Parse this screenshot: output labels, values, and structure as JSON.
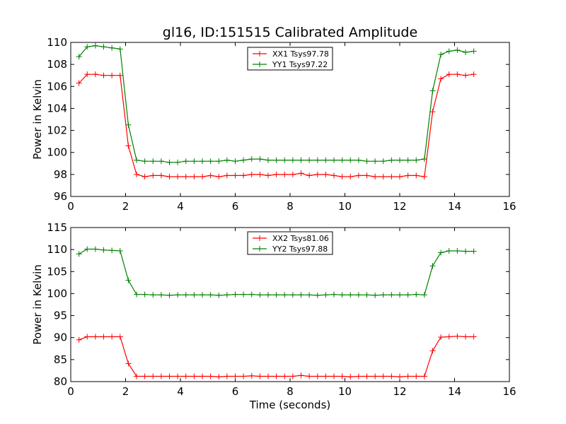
{
  "chart_data": [
    {
      "type": "line",
      "title": "gl16, ID:151515 Calibrated Amplitude",
      "xlabel": "",
      "ylabel": "Power in Kelvin",
      "xlim": [
        0,
        16
      ],
      "ylim": [
        96,
        110
      ],
      "xticks": [
        0,
        2,
        4,
        6,
        8,
        10,
        12,
        14,
        16
      ],
      "yticks": [
        96,
        98,
        100,
        102,
        104,
        106,
        108,
        110
      ],
      "legend": "top-center",
      "x": [
        0.3,
        0.6,
        0.9,
        1.2,
        1.5,
        1.8,
        2.1,
        2.4,
        2.7,
        3.0,
        3.3,
        3.6,
        3.9,
        4.2,
        4.5,
        4.8,
        5.1,
        5.4,
        5.7,
        6.0,
        6.3,
        6.6,
        6.9,
        7.2,
        7.5,
        7.8,
        8.1,
        8.4,
        8.7,
        9.0,
        9.3,
        9.6,
        9.9,
        10.2,
        10.5,
        10.8,
        11.1,
        11.4,
        11.7,
        12.0,
        12.3,
        12.6,
        12.9,
        13.2,
        13.5,
        13.8,
        14.1,
        14.4,
        14.7
      ],
      "series": [
        {
          "name": "XX1 Tsys97.78",
          "color": "#ff0000",
          "values": [
            106.3,
            107.1,
            107.1,
            107.0,
            107.0,
            107.0,
            100.6,
            98.0,
            97.8,
            97.9,
            97.9,
            97.8,
            97.8,
            97.8,
            97.8,
            97.8,
            97.9,
            97.8,
            97.9,
            97.9,
            97.9,
            98.0,
            98.0,
            97.9,
            98.0,
            98.0,
            98.0,
            98.1,
            97.9,
            98.0,
            98.0,
            97.9,
            97.8,
            97.8,
            97.9,
            97.9,
            97.8,
            97.8,
            97.8,
            97.8,
            97.9,
            97.9,
            97.8,
            103.7,
            106.7,
            107.1,
            107.1,
            107.0,
            107.1
          ]
        },
        {
          "name": "YY1 Tsys97.22",
          "color": "#008000",
          "values": [
            108.7,
            109.6,
            109.7,
            109.6,
            109.5,
            109.4,
            102.5,
            99.3,
            99.2,
            99.2,
            99.2,
            99.1,
            99.1,
            99.2,
            99.2,
            99.2,
            99.2,
            99.2,
            99.3,
            99.2,
            99.3,
            99.4,
            99.4,
            99.3,
            99.3,
            99.3,
            99.3,
            99.3,
            99.3,
            99.3,
            99.3,
            99.3,
            99.3,
            99.3,
            99.3,
            99.2,
            99.2,
            99.2,
            99.3,
            99.3,
            99.3,
            99.3,
            99.4,
            105.6,
            108.9,
            109.2,
            109.3,
            109.1,
            109.2
          ]
        }
      ]
    },
    {
      "type": "line",
      "title": "",
      "xlabel": "Time (seconds)",
      "ylabel": "Power in Kelvin",
      "xlim": [
        0,
        16
      ],
      "ylim": [
        80,
        115
      ],
      "xticks": [
        0,
        2,
        4,
        6,
        8,
        10,
        12,
        14,
        16
      ],
      "yticks": [
        80,
        85,
        90,
        95,
        100,
        105,
        110,
        115
      ],
      "legend": "top-center",
      "x": [
        0.3,
        0.6,
        0.9,
        1.2,
        1.5,
        1.8,
        2.1,
        2.4,
        2.7,
        3.0,
        3.3,
        3.6,
        3.9,
        4.2,
        4.5,
        4.8,
        5.1,
        5.4,
        5.7,
        6.0,
        6.3,
        6.6,
        6.9,
        7.2,
        7.5,
        7.8,
        8.1,
        8.4,
        8.7,
        9.0,
        9.3,
        9.6,
        9.9,
        10.2,
        10.5,
        10.8,
        11.1,
        11.4,
        11.7,
        12.0,
        12.3,
        12.6,
        12.9,
        13.2,
        13.5,
        13.8,
        14.1,
        14.4,
        14.7
      ],
      "series": [
        {
          "name": "XX2 Tsys81.06",
          "color": "#ff0000",
          "values": [
            89.5,
            90.2,
            90.2,
            90.2,
            90.2,
            90.2,
            84.1,
            81.2,
            81.2,
            81.2,
            81.2,
            81.2,
            81.2,
            81.2,
            81.2,
            81.2,
            81.2,
            81.1,
            81.2,
            81.2,
            81.2,
            81.3,
            81.2,
            81.2,
            81.2,
            81.2,
            81.2,
            81.4,
            81.2,
            81.2,
            81.2,
            81.2,
            81.2,
            81.1,
            81.2,
            81.2,
            81.2,
            81.2,
            81.2,
            81.1,
            81.2,
            81.2,
            81.2,
            87.0,
            90.1,
            90.2,
            90.3,
            90.2,
            90.2
          ]
        },
        {
          "name": "YY2 Tsys97.88",
          "color": "#008000",
          "values": [
            109.0,
            110.1,
            110.1,
            109.9,
            109.8,
            109.7,
            103.0,
            99.8,
            99.8,
            99.7,
            99.7,
            99.6,
            99.7,
            99.7,
            99.7,
            99.7,
            99.7,
            99.6,
            99.7,
            99.8,
            99.8,
            99.8,
            99.7,
            99.7,
            99.7,
            99.7,
            99.7,
            99.7,
            99.7,
            99.6,
            99.7,
            99.8,
            99.7,
            99.7,
            99.7,
            99.7,
            99.6,
            99.7,
            99.7,
            99.7,
            99.7,
            99.8,
            99.7,
            106.3,
            109.3,
            109.7,
            109.7,
            109.6,
            109.6
          ]
        }
      ]
    }
  ]
}
